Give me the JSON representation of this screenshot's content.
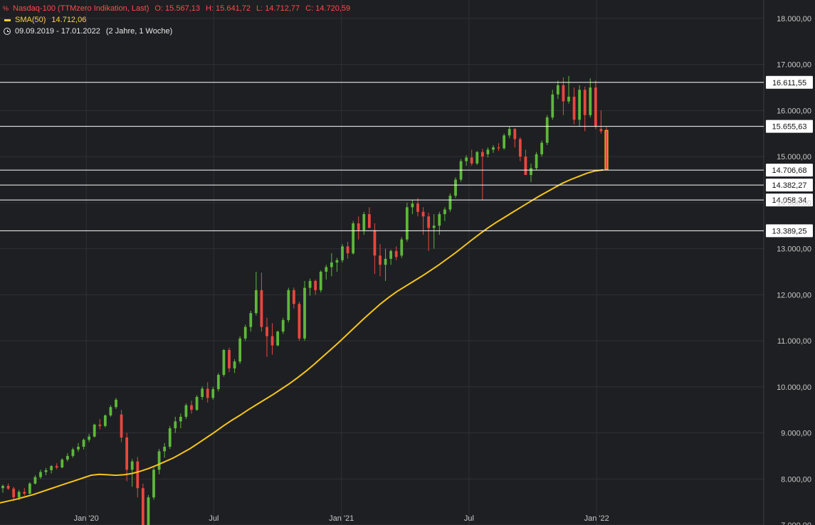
{
  "legend": {
    "title": "Nasdaq-100 (TTMzero Indikation, Last)",
    "open": "O: 15.567,13",
    "high": "H: 15.641,72",
    "low": "L: 14.712,77",
    "close": "C: 14.720,59",
    "sma_label": "SMA(50)",
    "sma_value": "14.712,06",
    "range": "09.09.2019 - 17.01.2022",
    "duration": "(2 Jahre, 1 Woche)"
  },
  "icons": {
    "percent": "percent-icon",
    "clock": "clock-icon"
  },
  "colors": {
    "background": "#1e1f22",
    "up": "#5db83a",
    "down": "#e8473f",
    "sma": "#f5c518",
    "levels": "#ffffff",
    "grid": "#2e3034",
    "axis_text": "#c8c8c8",
    "current_highlight": "#f0a020"
  },
  "chart_data": {
    "type": "candlestick",
    "interval": "weekly",
    "ylim": [
      7000,
      18400
    ],
    "y_ticks": [
      7000,
      8000,
      9000,
      10000,
      11000,
      12000,
      13000,
      14000,
      15000,
      16000,
      17000,
      18000
    ],
    "y_tick_labels": [
      "7.000,00",
      "8.000,00",
      "9.000,00",
      "10.000,00",
      "11.000,00",
      "12.000,00",
      "13.000,00",
      "14.000,00",
      "15.000,00",
      "16.000,00",
      "17.000,00",
      "18.000,00"
    ],
    "x_range": [
      "2019-09-09",
      "2022-01-17"
    ],
    "x_ticks": [
      {
        "label": "Jan '20",
        "date": "2020-01-06"
      },
      {
        "label": "Jul",
        "date": "2020-07-06"
      },
      {
        "label": "Jan '21",
        "date": "2021-01-04"
      },
      {
        "label": "Jul",
        "date": "2021-07-05"
      },
      {
        "label": "Jan '22",
        "date": "2022-01-03"
      }
    ],
    "grid": true,
    "levels": [
      {
        "value": 16611.55,
        "label": "16.611,55"
      },
      {
        "value": 15655.63,
        "label": "15.655,63"
      },
      {
        "value": 14706.68,
        "label": "14.706,68"
      },
      {
        "value": 14382.27,
        "label": "14.382,27"
      },
      {
        "value": 14058.34,
        "label": "14.058,34"
      },
      {
        "value": 13389.25,
        "label": "13.389,25"
      }
    ],
    "sma_name": "SMA(50)",
    "sma": [
      7480,
      7520,
      7560,
      7610,
      7660,
      7720,
      7780,
      7840,
      7900,
      7960,
      8020,
      8080,
      8100,
      8090,
      8080,
      8090,
      8120,
      8170,
      8230,
      8300,
      8380,
      8460,
      8560,
      8660,
      8780,
      8900,
      9020,
      9150,
      9270,
      9380,
      9500,
      9610,
      9720,
      9830,
      9950,
      10070,
      10200,
      10340,
      10490,
      10650,
      10810,
      10970,
      11140,
      11310,
      11480,
      11640,
      11800,
      11940,
      12070,
      12180,
      12290,
      12400,
      12520,
      12640,
      12770,
      12900,
      13040,
      13180,
      13320,
      13450,
      13570,
      13680,
      13790,
      13900,
      14010,
      14120,
      14220,
      14320,
      14420,
      14500,
      14570,
      14640,
      14690,
      14712.06
    ],
    "candles": [
      [
        7800,
        7880,
        7700,
        7850
      ],
      [
        7850,
        7900,
        7760,
        7790
      ],
      [
        7790,
        7830,
        7520,
        7600
      ],
      [
        7600,
        7760,
        7540,
        7720
      ],
      [
        7720,
        7800,
        7640,
        7680
      ],
      [
        7680,
        7930,
        7660,
        7900
      ],
      [
        7900,
        8080,
        7880,
        8040
      ],
      [
        8040,
        8200,
        8000,
        8150
      ],
      [
        8150,
        8240,
        8080,
        8190
      ],
      [
        8190,
        8300,
        8120,
        8280
      ],
      [
        8280,
        8340,
        8210,
        8250
      ],
      [
        8250,
        8450,
        8230,
        8420
      ],
      [
        8420,
        8560,
        8380,
        8500
      ],
      [
        8500,
        8680,
        8460,
        8640
      ],
      [
        8640,
        8780,
        8590,
        8700
      ],
      [
        8700,
        8880,
        8640,
        8850
      ],
      [
        8850,
        8980,
        8800,
        8920
      ],
      [
        8920,
        9200,
        8900,
        9180
      ],
      [
        9180,
        9300,
        9080,
        9150
      ],
      [
        9150,
        9400,
        9120,
        9380
      ],
      [
        9380,
        9600,
        9350,
        9560
      ],
      [
        9560,
        9760,
        9520,
        9720
      ],
      [
        9400,
        9500,
        8800,
        8900
      ],
      [
        8900,
        9000,
        7950,
        8200
      ],
      [
        8200,
        8430,
        7830,
        8380
      ],
      [
        8380,
        8480,
        7600,
        7800
      ],
      [
        7800,
        7900,
        6800,
        7000
      ],
      [
        7000,
        7650,
        6980,
        7600
      ],
      [
        7600,
        8250,
        7550,
        8200
      ],
      [
        8200,
        8650,
        8100,
        8600
      ],
      [
        8600,
        8780,
        8460,
        8700
      ],
      [
        8700,
        9150,
        8650,
        9100
      ],
      [
        9100,
        9350,
        9000,
        9250
      ],
      [
        9250,
        9420,
        9100,
        9350
      ],
      [
        9350,
        9640,
        9300,
        9600
      ],
      [
        9600,
        9700,
        9420,
        9500
      ],
      [
        9500,
        9820,
        9480,
        9780
      ],
      [
        9780,
        10010,
        9720,
        9960
      ],
      [
        9960,
        10100,
        9660,
        9760
      ],
      [
        9760,
        10000,
        9720,
        9950
      ],
      [
        9950,
        10300,
        9900,
        10260
      ],
      [
        10260,
        10820,
        10220,
        10800
      ],
      [
        10800,
        10850,
        10320,
        10400
      ],
      [
        10400,
        10600,
        10300,
        10550
      ],
      [
        10550,
        11100,
        10500,
        11050
      ],
      [
        11050,
        11350,
        11000,
        11300
      ],
      [
        11300,
        11650,
        11200,
        11600
      ],
      [
        11600,
        12500,
        11550,
        12100
      ],
      [
        12100,
        12480,
        11200,
        11300
      ],
      [
        11300,
        11500,
        10650,
        11100
      ],
      [
        11100,
        11380,
        10700,
        10900
      ],
      [
        10900,
        11220,
        10880,
        11200
      ],
      [
        11200,
        11500,
        11150,
        11450
      ],
      [
        11450,
        12150,
        11400,
        12100
      ],
      [
        12100,
        12160,
        11700,
        11800
      ],
      [
        11800,
        11850,
        11000,
        11050
      ],
      [
        11050,
        12300,
        11000,
        12150
      ],
      [
        12150,
        12350,
        11980,
        12300
      ],
      [
        12300,
        12330,
        12000,
        12100
      ],
      [
        12100,
        12530,
        12050,
        12500
      ],
      [
        12500,
        12650,
        12330,
        12600
      ],
      [
        12600,
        12900,
        12400,
        12700
      ],
      [
        12700,
        12800,
        12500,
        12750
      ],
      [
        12750,
        13100,
        12700,
        13050
      ],
      [
        13050,
        13150,
        12780,
        12900
      ],
      [
        12900,
        13600,
        12870,
        13550
      ],
      [
        13550,
        13700,
        13200,
        13400
      ],
      [
        13400,
        13800,
        13300,
        13750
      ],
      [
        13750,
        13900,
        13500,
        13450
      ],
      [
        13400,
        13550,
        12450,
        12850
      ],
      [
        12850,
        13100,
        12400,
        12650
      ],
      [
        12650,
        13000,
        12300,
        12780
      ],
      [
        12780,
        12980,
        12650,
        12950
      ],
      [
        12950,
        13050,
        12750,
        12820
      ],
      [
        12850,
        13250,
        12800,
        13200
      ],
      [
        13200,
        14000,
        13150,
        13900
      ],
      [
        13900,
        14050,
        13750,
        13980
      ],
      [
        13980,
        14100,
        13700,
        13800
      ],
      [
        13800,
        13900,
        13300,
        13700
      ],
      [
        13700,
        13780,
        12950,
        13450
      ],
      [
        13450,
        13750,
        13000,
        13500
      ],
      [
        13500,
        13800,
        13300,
        13750
      ],
      [
        13750,
        13900,
        13600,
        13850
      ],
      [
        13850,
        14200,
        13800,
        14150
      ],
      [
        14150,
        14550,
        14100,
        14500
      ],
      [
        14500,
        14950,
        14450,
        14900
      ],
      [
        14900,
        15030,
        14800,
        14980
      ],
      [
        14980,
        15150,
        14800,
        14850
      ],
      [
        14850,
        15120,
        14820,
        15100
      ],
      [
        15100,
        15170,
        14060,
        15000
      ],
      [
        15050,
        15200,
        14980,
        15150
      ],
      [
        15150,
        15250,
        15080,
        15200
      ],
      [
        15200,
        15290,
        15120,
        15180
      ],
      [
        15180,
        15500,
        15150,
        15460
      ],
      [
        15460,
        15650,
        15400,
        15600
      ],
      [
        15600,
        15620,
        15200,
        15380
      ],
      [
        15380,
        15420,
        14900,
        15000
      ],
      [
        15000,
        15150,
        14700,
        14600
      ],
      [
        14600,
        14850,
        14450,
        14750
      ],
      [
        14750,
        15100,
        14700,
        15050
      ],
      [
        15050,
        15350,
        15000,
        15300
      ],
      [
        15300,
        15900,
        15250,
        15850
      ],
      [
        15850,
        16450,
        15800,
        16350
      ],
      [
        16350,
        16650,
        16250,
        16550
      ],
      [
        16550,
        16720,
        15900,
        16200
      ],
      [
        16200,
        16750,
        16150,
        16300
      ],
      [
        16300,
        16500,
        15700,
        15800
      ],
      [
        15800,
        16550,
        15650,
        16450
      ],
      [
        16450,
        16520,
        15550,
        15900
      ],
      [
        15900,
        16700,
        15850,
        16500
      ],
      [
        16500,
        16650,
        15600,
        15650
      ],
      [
        15600,
        16000,
        15500,
        15550
      ],
      [
        15567.13,
        15641.72,
        14712.77,
        14720.59
      ]
    ]
  }
}
